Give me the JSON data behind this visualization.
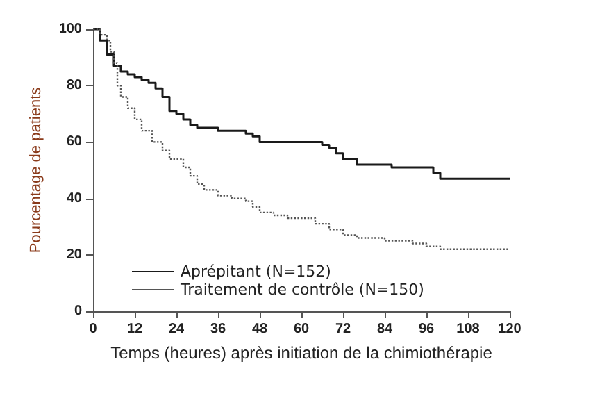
{
  "chart_data": {
    "type": "step",
    "xlabel": "Temps (heures) après initiation de la chimiothérapie",
    "ylabel": "Pourcentage de patients",
    "xlim": [
      0,
      120
    ],
    "xticks": [
      0,
      12,
      24,
      36,
      48,
      60,
      72,
      84,
      96,
      108,
      120
    ],
    "ylim": [
      0,
      100
    ],
    "yticks": [
      0,
      20,
      40,
      60,
      80,
      100
    ],
    "grid": false,
    "legend": "bottom left",
    "marker": "none",
    "series": [
      {
        "name": "Aprépitant (N=152)",
        "color": "#1a1a1a",
        "line_style": "solid",
        "x": [
          0,
          2,
          4,
          6,
          8,
          10,
          12,
          14,
          16,
          18,
          20,
          22,
          24,
          26,
          28,
          30,
          36,
          44,
          46,
          48,
          64,
          66,
          68,
          70,
          72,
          76,
          86,
          98,
          100,
          120
        ],
        "values": [
          100,
          96,
          91,
          87,
          85,
          84,
          83,
          82,
          81,
          79,
          76,
          71,
          70,
          68,
          66,
          65,
          64,
          63,
          62,
          60,
          60,
          59,
          58,
          56,
          54,
          52,
          51,
          49,
          47,
          47
        ]
      },
      {
        "name": "Traitement de contrôle (N=150)",
        "color": "#555555",
        "line_style": "dotted",
        "x": [
          0,
          2,
          4,
          5,
          6,
          7,
          8,
          10,
          12,
          14,
          17,
          20,
          22,
          26,
          28,
          30,
          32,
          36,
          40,
          44,
          46,
          48,
          52,
          56,
          64,
          68,
          72,
          76,
          84,
          92,
          96,
          100,
          120
        ],
        "values": [
          100,
          98,
          96,
          92,
          88,
          80,
          76,
          72,
          68,
          64,
          60,
          57,
          54,
          51,
          48,
          45,
          43,
          41,
          40,
          39,
          37,
          35,
          34,
          33,
          31,
          29,
          27,
          26,
          25,
          24,
          23,
          22,
          22
        ]
      }
    ]
  }
}
